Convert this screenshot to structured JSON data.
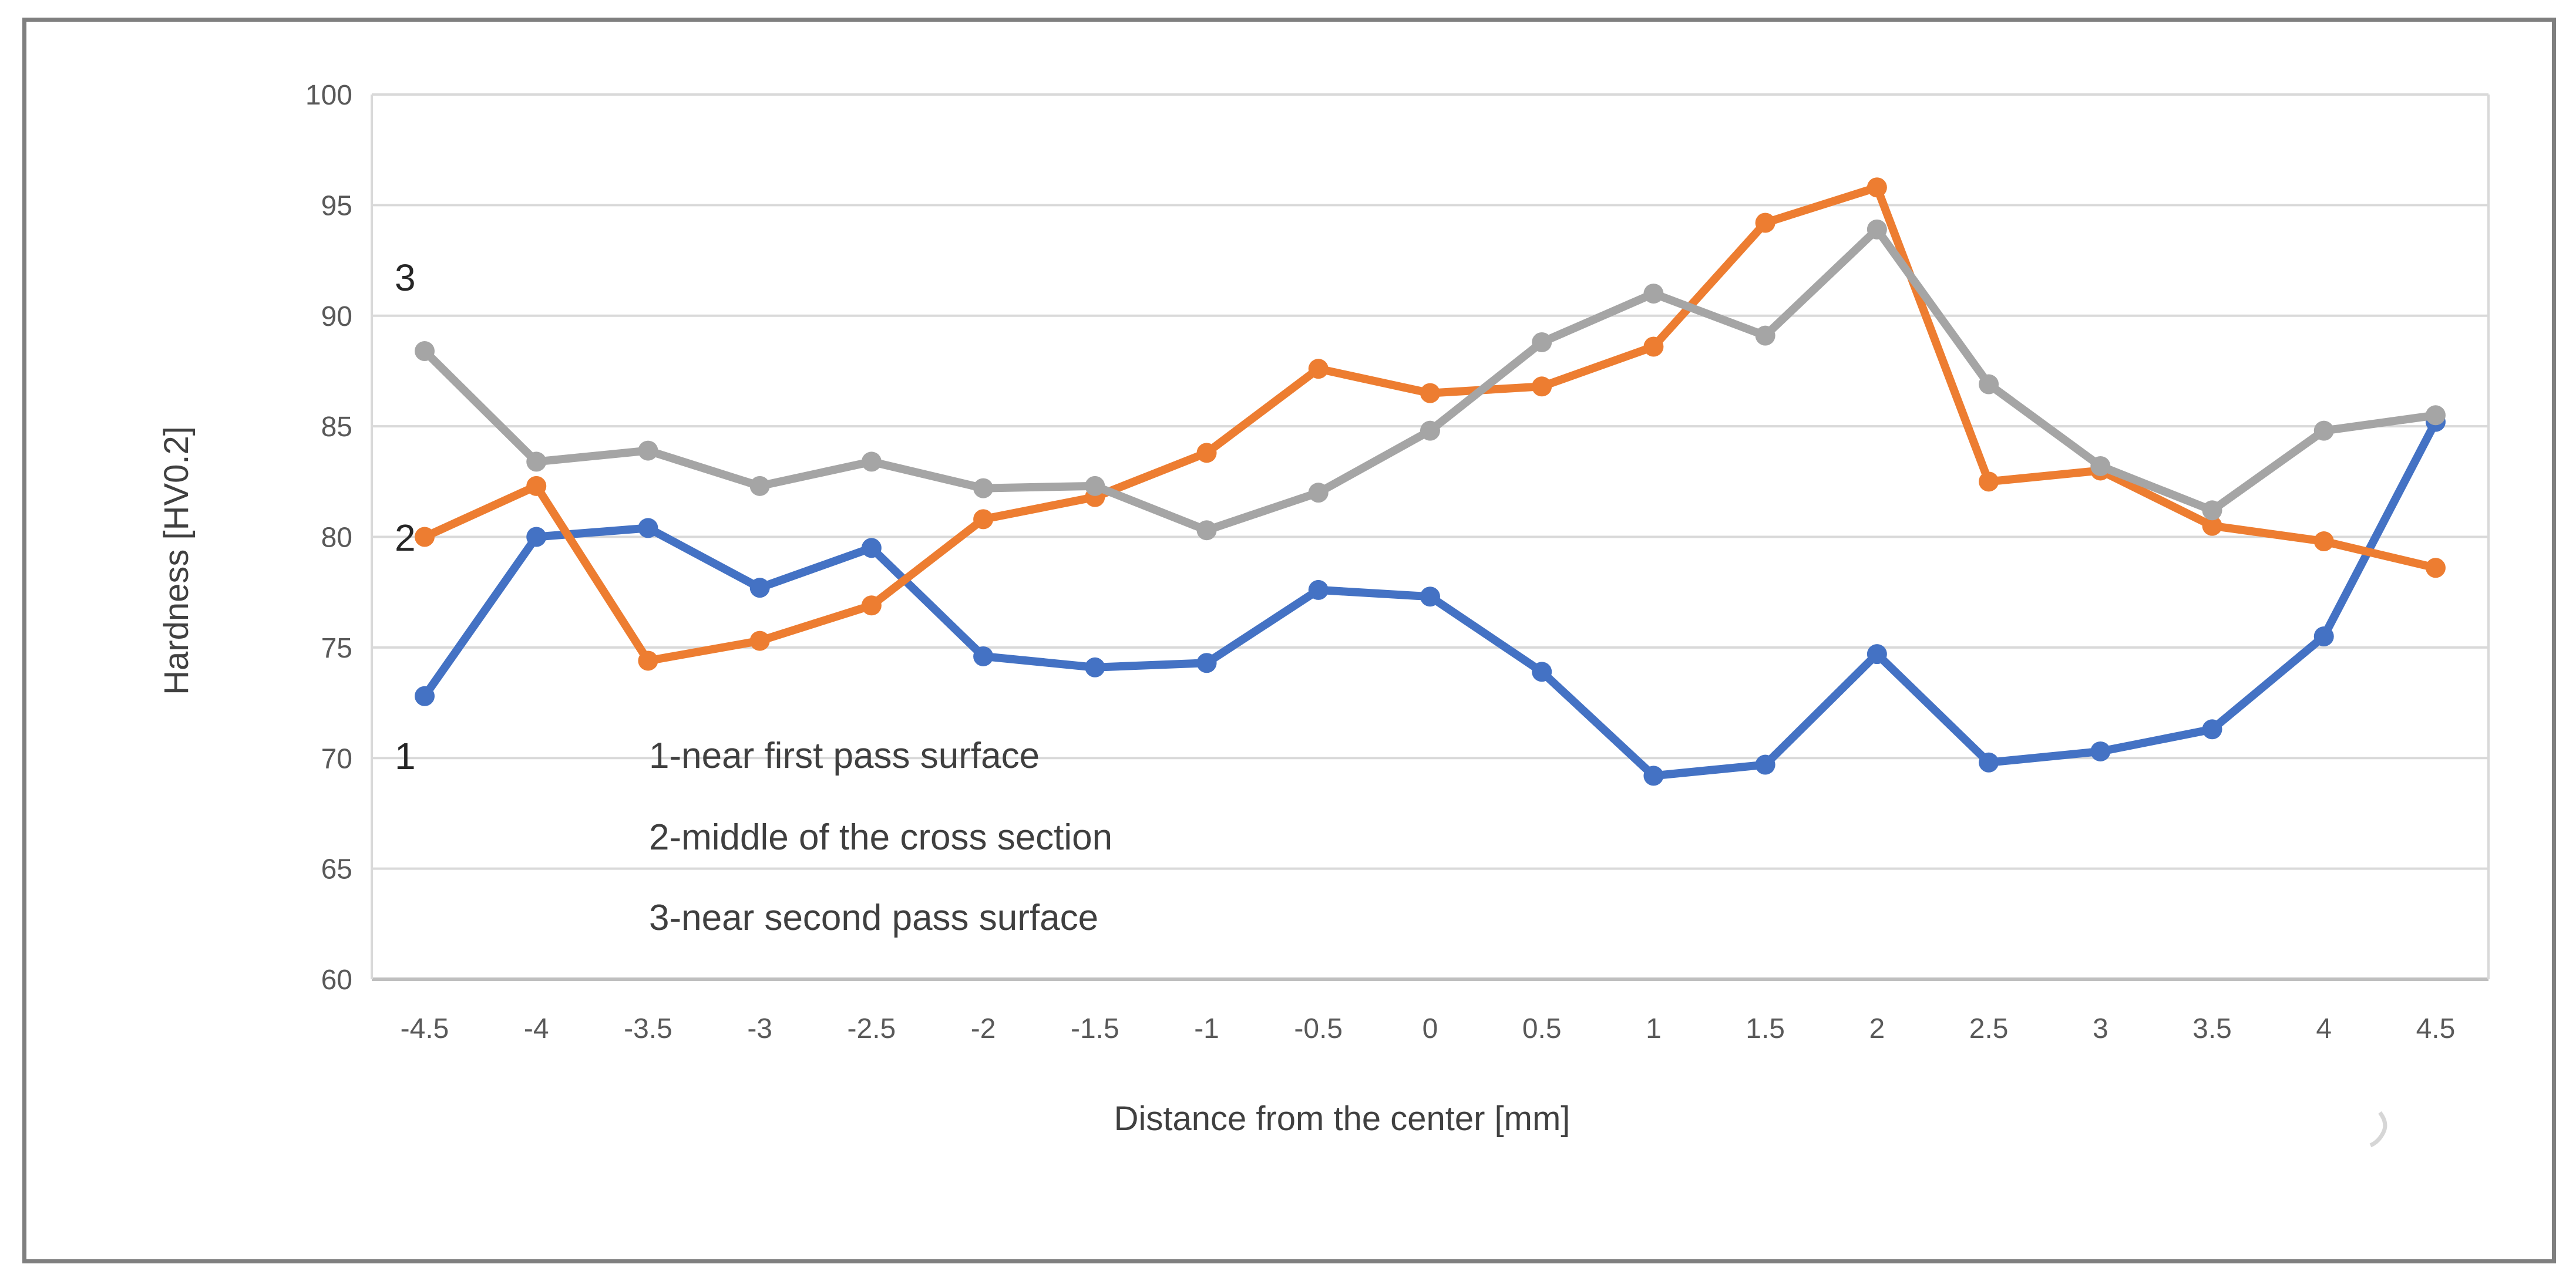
{
  "chart_data": {
    "type": "line",
    "title": "",
    "xlabel": "Distance from the center [mm]",
    "ylabel": "Hardness [HV0.2]",
    "x_categories": [
      "-4.5",
      "-4",
      "-3.5",
      "-3",
      "-2.5",
      "-2",
      "-1.5",
      "-1",
      "-0.5",
      "0",
      "0.5",
      "1",
      "1.5",
      "2",
      "2.5",
      "3",
      "3.5",
      "4",
      "4.5"
    ],
    "ylim": [
      60,
      100
    ],
    "ytick_step": 5,
    "ytick_labels": [
      "100",
      "95",
      "90",
      "85",
      "80",
      "75",
      "70",
      "65",
      "60"
    ],
    "grid": "horizontal",
    "legend_position": "none",
    "series": [
      {
        "name": "1",
        "label": "1-near first pass surface",
        "color": "#4472C4",
        "values": [
          72.8,
          80.0,
          80.4,
          77.7,
          79.5,
          74.6,
          74.1,
          74.3,
          77.6,
          77.3,
          73.9,
          69.2,
          69.7,
          74.7,
          69.8,
          70.3,
          71.3,
          75.5,
          85.2
        ]
      },
      {
        "name": "2",
        "label": "2-middle of the cross section",
        "color": "#ED7D31",
        "values": [
          80.0,
          82.3,
          74.4,
          75.3,
          76.9,
          80.8,
          81.8,
          83.8,
          87.6,
          86.5,
          86.8,
          88.6,
          94.2,
          95.8,
          82.5,
          83.0,
          80.5,
          79.8,
          78.6
        ]
      },
      {
        "name": "3",
        "label": "3-near second pass surface",
        "color": "#A5A5A5",
        "values": [
          88.4,
          83.4,
          83.9,
          82.3,
          83.4,
          82.2,
          82.3,
          80.3,
          82.0,
          84.8,
          88.8,
          91.0,
          89.1,
          93.9,
          86.9,
          83.2,
          81.2,
          84.8,
          85.5
        ]
      }
    ],
    "colors": {
      "gridline": "#D9D9D9",
      "axisline": "#BFBFBF",
      "tick_text": "#595959",
      "frame_border": "#7f7f7f"
    }
  }
}
